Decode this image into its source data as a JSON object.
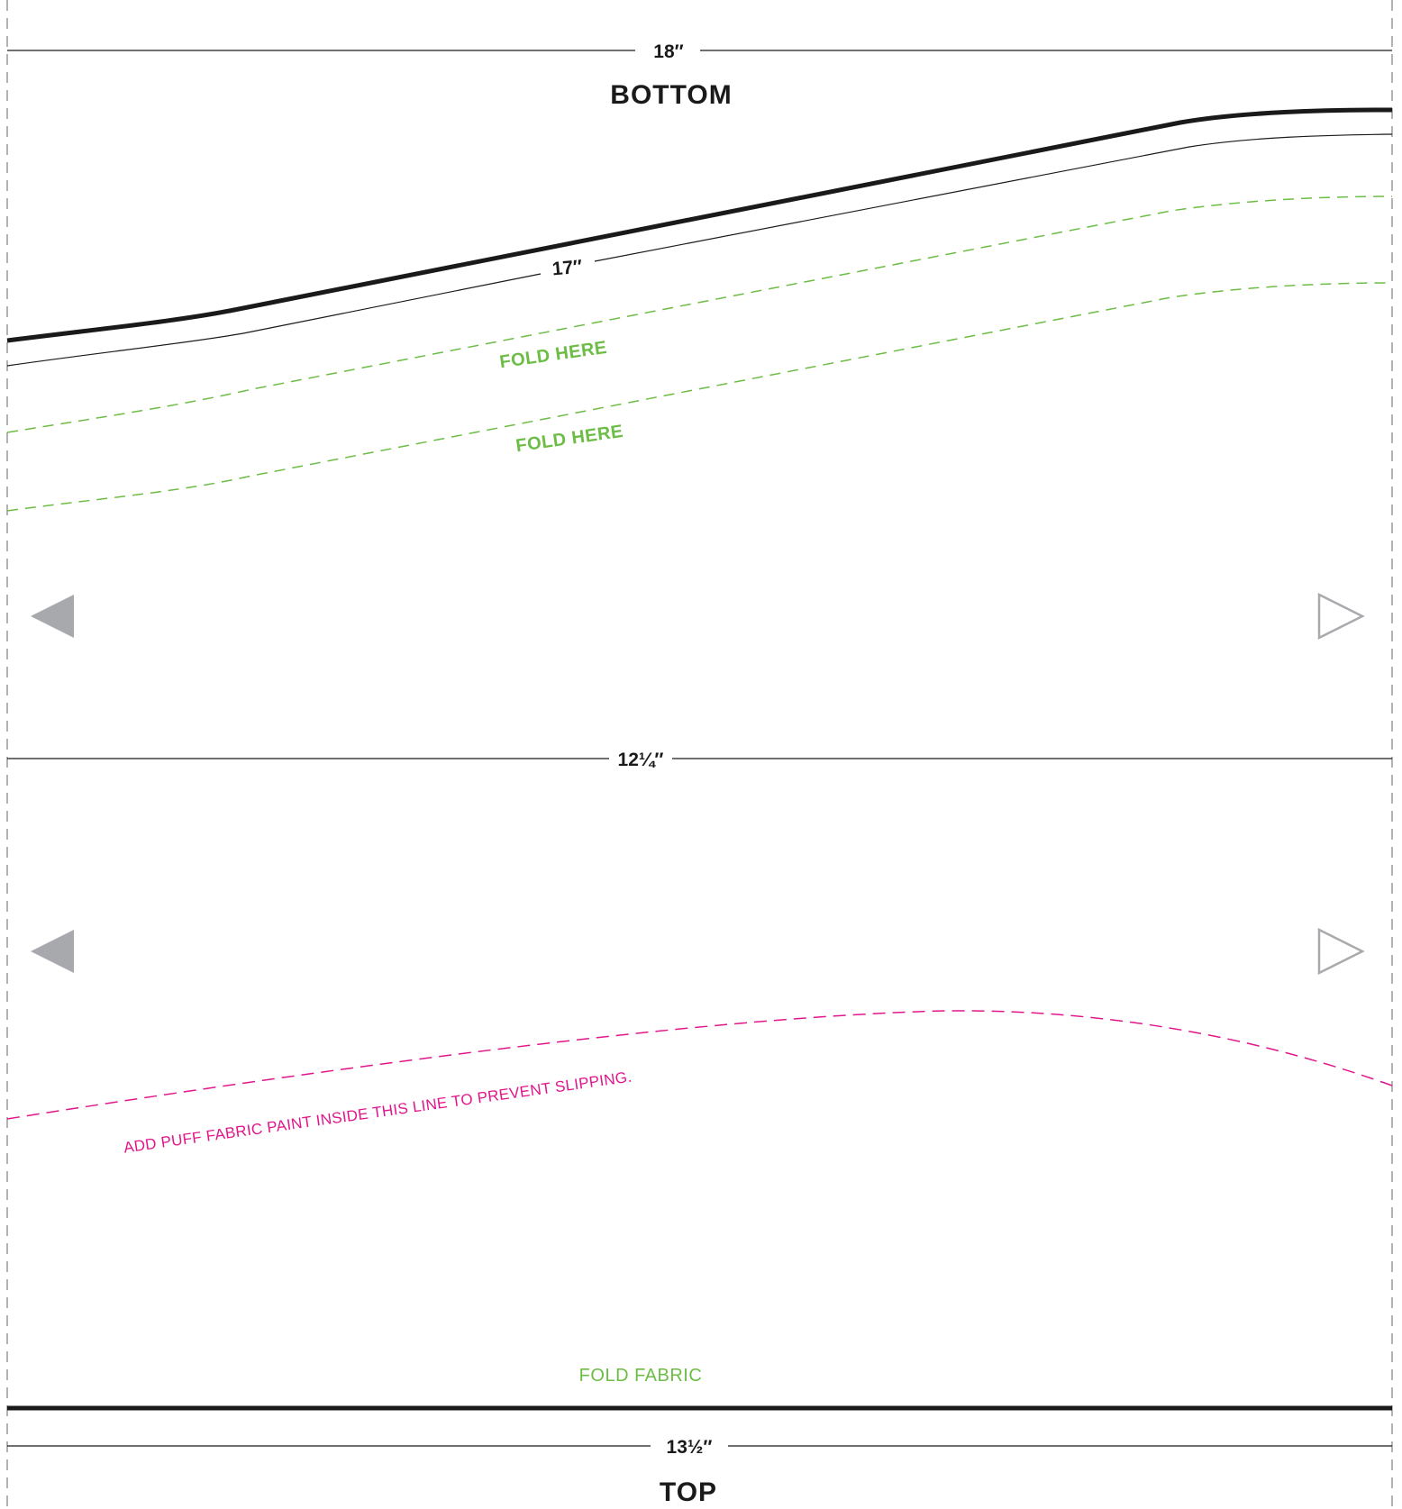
{
  "colors": {
    "line": "#1a1a1a",
    "edge_dash": "#9a9a9a",
    "fold_green": "#6cbd45",
    "paint_magenta": "#e2168c",
    "arrow_gray": "#a7a9ac"
  },
  "labels": {
    "top_width": "18″",
    "bottom_heading": "BOTTOM",
    "curve_length": "17″",
    "fold_here_1": "FOLD HERE",
    "fold_here_2": "FOLD HERE",
    "middle_width": "12¼″",
    "paint_note": "ADD PUFF FABRIC PAINT INSIDE THIS LINE TO PREVENT SLIPPING.",
    "fold_fabric": "FOLD FABRIC",
    "bottom_width": "13½″",
    "top_heading": "TOP"
  },
  "icons": [
    "arrow-left-filled-icon",
    "arrow-right-outline-icon"
  ]
}
